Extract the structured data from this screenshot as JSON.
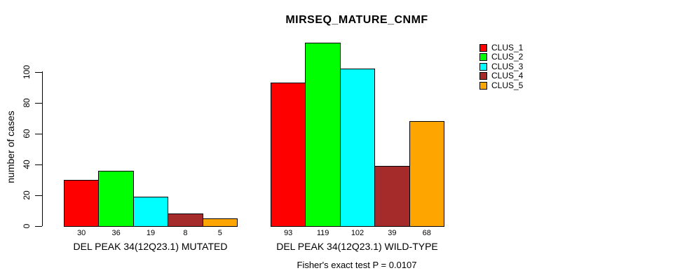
{
  "title": "MIRSEQ_MATURE_CNMF",
  "y_axis": {
    "label": "number of cases"
  },
  "footer": "Fisher's exact test P = 0.0107",
  "legend": {
    "position": "top-right",
    "entries": [
      {
        "label": "CLUS_1",
        "color": "#FF0000"
      },
      {
        "label": "CLUS_2",
        "color": "#00FF00"
      },
      {
        "label": "CLUS_3",
        "color": "#00FFFF"
      },
      {
        "label": "CLUS_4",
        "color": "#A52A2A"
      },
      {
        "label": "CLUS_5",
        "color": "#FFA500"
      }
    ]
  },
  "chart_data": {
    "type": "bar",
    "title": "MIRSEQ_MATURE_CNMF",
    "xlabel": "",
    "ylabel": "number of cases",
    "ylim": [
      0,
      120
    ],
    "yticks": [
      0,
      20,
      40,
      60,
      80,
      100
    ],
    "grid": false,
    "legend_position": "top-right",
    "annotation": "Fisher's exact test P = 0.0107",
    "categories": [
      "DEL PEAK 34(12Q23.1) MUTATED",
      "DEL PEAK 34(12Q23.1) WILD-TYPE"
    ],
    "series": [
      {
        "name": "CLUS_1",
        "color": "#FF0000",
        "values": [
          30,
          93
        ]
      },
      {
        "name": "CLUS_2",
        "color": "#00FF00",
        "values": [
          36,
          119
        ]
      },
      {
        "name": "CLUS_3",
        "color": "#00FFFF",
        "values": [
          19,
          102
        ]
      },
      {
        "name": "CLUS_4",
        "color": "#A52A2A",
        "values": [
          8,
          39
        ]
      },
      {
        "name": "CLUS_5",
        "color": "#FFA500",
        "values": [
          5,
          68
        ]
      }
    ],
    "bar_value_labels": [
      [
        30,
        36,
        19,
        8,
        5
      ],
      [
        93,
        119,
        102,
        39,
        68
      ]
    ]
  }
}
